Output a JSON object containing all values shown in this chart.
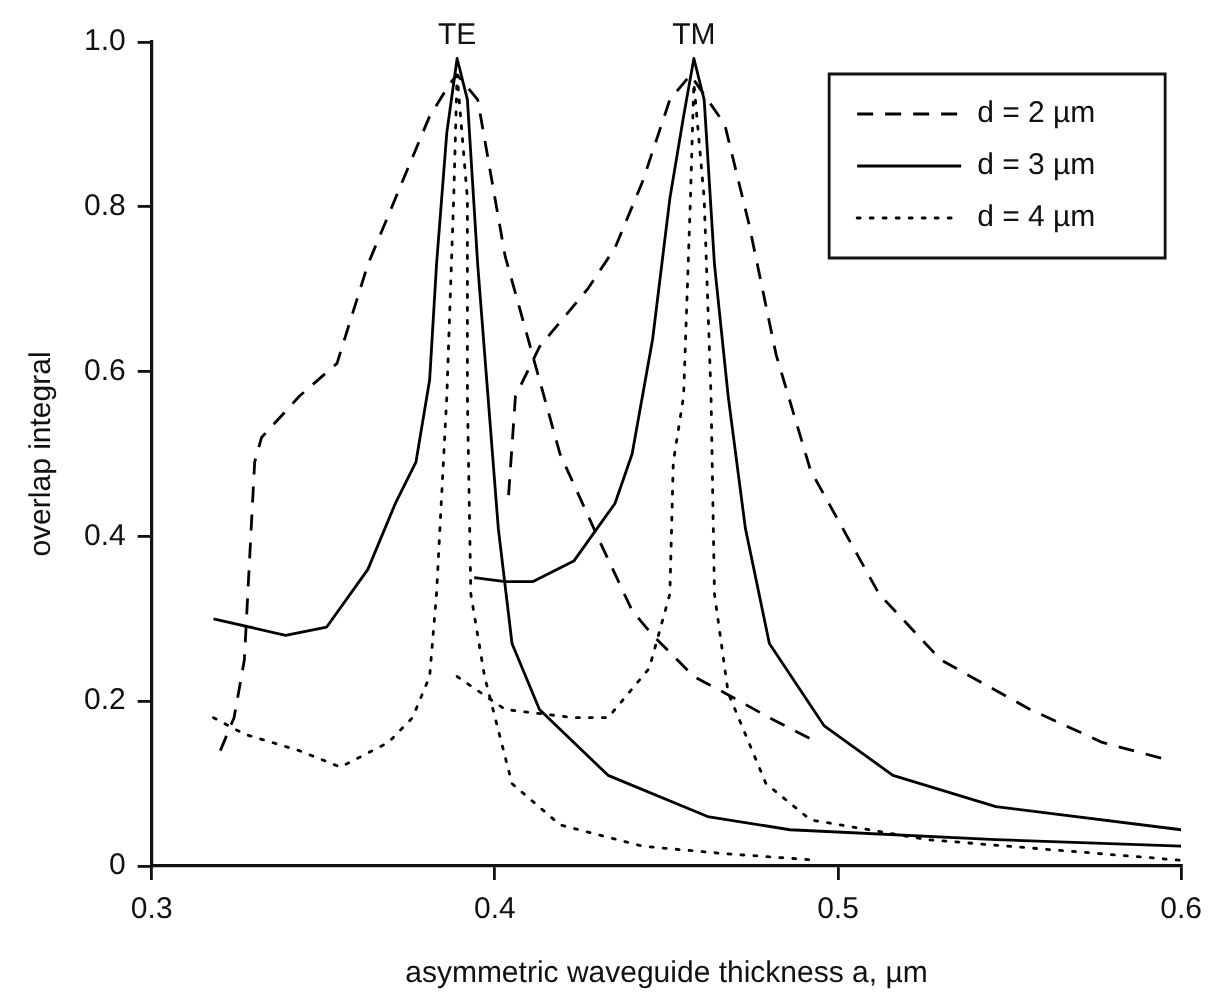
{
  "chart_data": {
    "type": "line",
    "xlabel": "asymmetric waveguide thickness a, µm",
    "ylabel": "overlap integral",
    "xlim": [
      0.3,
      0.6
    ],
    "xticks": [
      0.3,
      0.4,
      0.5,
      0.6
    ],
    "ylim": [
      0,
      1
    ],
    "yticks": [
      0,
      0.2,
      0.4,
      0.6,
      0.8,
      {
        "value": 1,
        "label": "1.0"
      }
    ],
    "grid": false,
    "legend": "top right",
    "marker": "none",
    "annotations": [
      {
        "text": "TE",
        "x": 0.389,
        "y": 0.98
      },
      {
        "text": "TM",
        "x": 0.458,
        "y": 0.98
      }
    ],
    "series": [
      {
        "name": "d = 2 µm",
        "color": "#000000",
        "line_style": "dashed",
        "x": [
          0.32,
          0.324,
          0.327,
          0.33,
          0.332,
          0.343,
          0.354,
          0.363,
          0.373,
          0.381,
          0.387,
          0.389,
          0.395,
          0.403,
          0.411,
          0.419,
          0.431,
          0.44,
          0.446,
          0.458,
          0.467,
          0.48,
          0.494,
          null,
          0.404,
          0.406,
          0.413,
          0.427,
          0.435,
          0.443,
          0.451,
          0.457,
          0.467,
          0.474,
          0.482,
          0.492,
          0.512,
          0.53,
          0.556,
          0.577,
          0.595
        ],
        "values": [
          0.14,
          0.18,
          0.25,
          0.49,
          0.52,
          0.57,
          0.61,
          0.73,
          0.83,
          0.91,
          0.95,
          0.96,
          0.93,
          0.74,
          0.62,
          0.5,
          0.39,
          0.31,
          0.28,
          0.23,
          0.21,
          0.18,
          0.15,
          null,
          0.45,
          0.57,
          0.63,
          0.7,
          0.75,
          0.83,
          0.93,
          0.96,
          0.9,
          0.78,
          0.62,
          0.48,
          0.33,
          0.25,
          0.19,
          0.15,
          0.13
        ]
      },
      {
        "name": "d = 3 µm",
        "color": "#000000",
        "line_style": "solid",
        "x": [
          0.318,
          0.339,
          0.351,
          0.363,
          0.371,
          0.377,
          0.381,
          0.383,
          0.386,
          0.389,
          0.392,
          0.395,
          0.398,
          0.401,
          0.405,
          0.413,
          0.433,
          0.462,
          0.486,
          0.546,
          0.6,
          null,
          0.394,
          0.403,
          0.411,
          0.423,
          0.435,
          0.44,
          0.446,
          0.451,
          0.455,
          0.458,
          0.461,
          0.464,
          0.468,
          0.473,
          0.48,
          0.496,
          0.516,
          0.546,
          0.6
        ],
        "values": [
          0.3,
          0.28,
          0.29,
          0.36,
          0.44,
          0.49,
          0.59,
          0.73,
          0.89,
          0.98,
          0.93,
          0.73,
          0.57,
          0.41,
          0.27,
          0.19,
          0.11,
          0.06,
          0.044,
          0.032,
          0.024,
          null,
          0.35,
          0.345,
          0.345,
          0.37,
          0.44,
          0.5,
          0.64,
          0.81,
          0.91,
          0.98,
          0.93,
          0.73,
          0.57,
          0.41,
          0.27,
          0.17,
          0.11,
          0.072,
          0.044
        ]
      },
      {
        "name": "d = 4 µm",
        "color": "#000000",
        "line_style": "dotted",
        "x": [
          0.318,
          0.327,
          0.343,
          0.355,
          0.369,
          0.376,
          0.381,
          0.383,
          0.385,
          0.386,
          0.388,
          0.389,
          0.392,
          0.392,
          0.393,
          0.397,
          0.405,
          0.419,
          0.443,
          0.467,
          0.494,
          null,
          0.389,
          0.403,
          0.423,
          0.433,
          0.445,
          0.451,
          0.452,
          0.455,
          0.457,
          0.458,
          0.461,
          0.463,
          0.464,
          0.468,
          0.479,
          0.492,
          0.526,
          0.6
        ],
        "values": [
          0.18,
          0.16,
          0.14,
          0.12,
          0.15,
          0.18,
          0.23,
          0.33,
          0.49,
          0.57,
          0.81,
          0.96,
          0.81,
          0.57,
          0.33,
          0.23,
          0.1,
          0.05,
          0.024,
          0.015,
          0.007,
          null,
          0.23,
          0.19,
          0.18,
          0.18,
          0.24,
          0.33,
          0.49,
          0.57,
          0.81,
          0.95,
          0.81,
          0.57,
          0.33,
          0.21,
          0.1,
          0.056,
          0.032,
          0.007
        ]
      }
    ]
  }
}
